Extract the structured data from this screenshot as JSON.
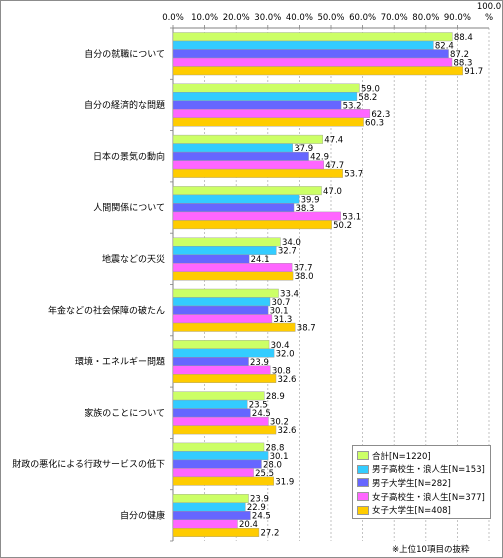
{
  "chart_data": {
    "type": "bar",
    "orientation": "horizontal",
    "xlim": [
      0,
      100
    ],
    "x_ticks": [
      "0.0%",
      "10.0%",
      "20.0%",
      "30.0%",
      "40.0%",
      "50.0%",
      "60.0%",
      "70.0%",
      "80.0%",
      "90.0%"
    ],
    "x_max_label": "100.0",
    "x_unit": "%",
    "grid": "vertical dashed",
    "legend_position": "bottom-right",
    "categories": [
      "自分の就職について",
      "自分の経済的な問題",
      "日本の景気の動向",
      "人間関係について",
      "地震などの天災",
      "年金などの社会保障の破たん",
      "環境・エネルギー問題",
      "家族のことについて",
      "財政の悪化による行政サービスの低下",
      "自分の健康"
    ],
    "series": [
      {
        "name": "合計[N=1220]",
        "color": "#ccff66",
        "values": [
          88.4,
          59.0,
          47.4,
          47.0,
          34.0,
          33.4,
          30.4,
          28.9,
          28.8,
          23.9
        ]
      },
      {
        "name": "男子高校生・浪人生[N=153]",
        "color": "#33ccff",
        "values": [
          82.4,
          58.2,
          37.9,
          39.9,
          32.7,
          30.7,
          32.0,
          23.5,
          30.1,
          22.9
        ]
      },
      {
        "name": "男子大学生[N=282]",
        "color": "#6666ff",
        "values": [
          87.2,
          53.2,
          42.9,
          38.3,
          24.1,
          30.1,
          23.9,
          24.5,
          28.0,
          24.5
        ]
      },
      {
        "name": "女子高校生・浪人生[N=377]",
        "color": "#ff66ff",
        "values": [
          88.3,
          62.3,
          47.7,
          53.1,
          37.7,
          31.3,
          30.8,
          30.2,
          25.5,
          20.4
        ]
      },
      {
        "name": "女子大学生[N=408]",
        "color": "#ffcc00",
        "values": [
          91.7,
          60.3,
          53.7,
          50.2,
          38.0,
          38.7,
          32.6,
          32.6,
          31.9,
          27.2
        ]
      }
    ],
    "footnote": "※上位10項目の抜粋"
  }
}
